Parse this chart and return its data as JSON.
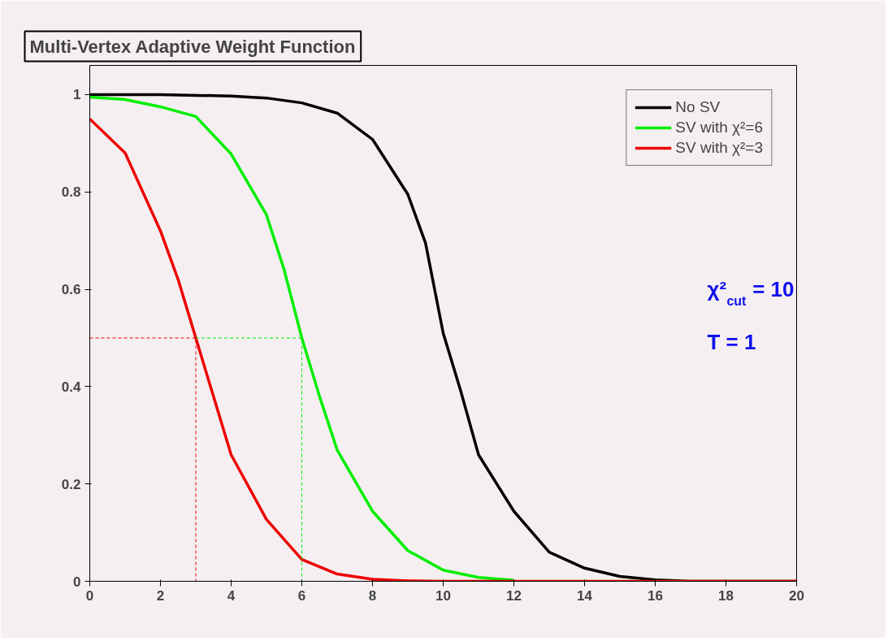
{
  "chart_data": {
    "type": "line",
    "title": "Multi-Vertex Adaptive Weight Function",
    "xlim": [
      0,
      20
    ],
    "ylim": [
      0,
      1.06
    ],
    "xticks": [
      0,
      2,
      4,
      6,
      8,
      10,
      12,
      14,
      16,
      18,
      20
    ],
    "yticks": [
      0,
      0.2,
      0.4,
      0.6,
      0.8,
      1
    ],
    "grid": false,
    "legend": "top right",
    "line_style": "solid",
    "marker": "none",
    "series": [
      {
        "name": "No SV",
        "color": "#000000",
        "x": [
          0,
          2,
          4,
          5,
          6,
          7,
          8,
          9,
          9.5,
          10,
          10.5,
          11,
          12,
          13,
          14,
          15,
          16,
          17,
          18,
          19,
          20
        ],
        "values": [
          1.0,
          1.0,
          0.997,
          0.993,
          0.983,
          0.962,
          0.908,
          0.795,
          0.695,
          0.51,
          0.39,
          0.26,
          0.144,
          0.06,
          0.027,
          0.01,
          0.003,
          0,
          0,
          0,
          0
        ]
      },
      {
        "name": "SV with χ²=6",
        "color": "#00ee00",
        "x": [
          0,
          1,
          2,
          3,
          4,
          5,
          5.5,
          6,
          6.5,
          7,
          8,
          9,
          10,
          11,
          12
        ],
        "values": [
          0.995,
          0.99,
          0.975,
          0.955,
          0.878,
          0.753,
          0.64,
          0.5,
          0.38,
          0.27,
          0.144,
          0.063,
          0.023,
          0.008,
          0.002
        ]
      },
      {
        "name": "SV with χ²=3",
        "color": "#ee0000",
        "x": [
          0,
          1,
          2,
          2.5,
          3,
          3.5,
          4,
          5,
          6,
          7,
          8,
          9,
          10,
          12,
          14,
          16,
          18,
          20
        ],
        "values": [
          0.95,
          0.88,
          0.72,
          0.62,
          0.5,
          0.38,
          0.26,
          0.127,
          0.045,
          0.015,
          0.004,
          0.001,
          0,
          0,
          0,
          0,
          0,
          0
        ]
      },
      {
        "color": "#ee0000",
        "line_style": "dashed",
        "x": [
          0,
          3,
          3
        ],
        "values": [
          0.5,
          0.5,
          0
        ]
      },
      {
        "color": "#00ee00",
        "line_style": "dashed",
        "x": [
          3,
          6,
          6
        ],
        "values": [
          0.5,
          0.5,
          0
        ]
      }
    ],
    "annotations": [
      "χ²$_{cut}$ = 10",
      "T = 1"
    ]
  }
}
